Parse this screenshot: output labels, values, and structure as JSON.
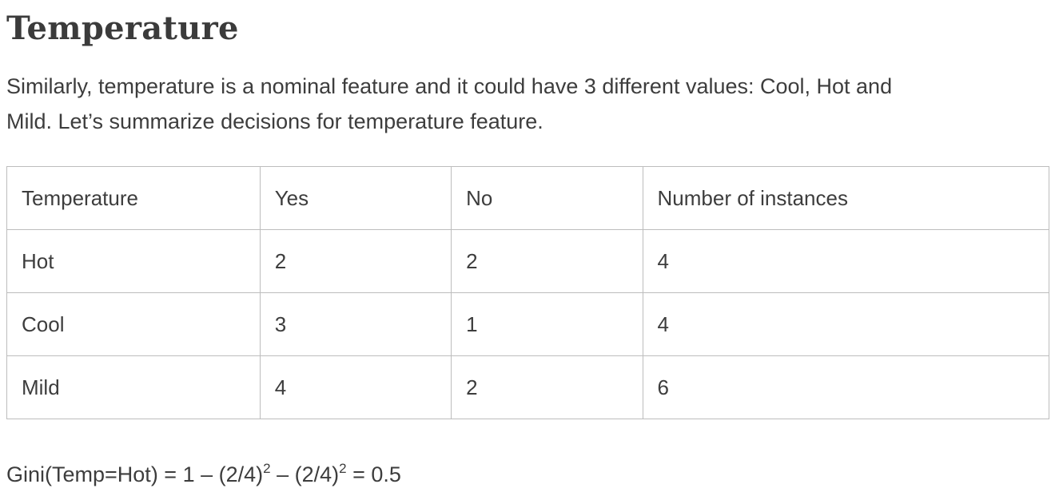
{
  "heading": "Temperature",
  "intro": {
    "line1": "Similarly, temperature is a nominal feature and it could have 3 different values: Cool, Hot and",
    "line2": "Mild. Let’s summarize decisions for temperature feature."
  },
  "table": {
    "headers": [
      "Temperature",
      "Yes",
      "No",
      "Number of instances"
    ],
    "rows": [
      [
        "Hot",
        "2",
        "2",
        "4"
      ],
      [
        "Cool",
        "3",
        "1",
        "4"
      ],
      [
        "Mild",
        "4",
        "2",
        "6"
      ]
    ]
  },
  "formula": {
    "part1": "Gini(Temp=Hot) = 1 – (2/4)",
    "exp1": "2",
    "part2": " – (2/4)",
    "exp2": "2",
    "part3": " = 0.5"
  }
}
